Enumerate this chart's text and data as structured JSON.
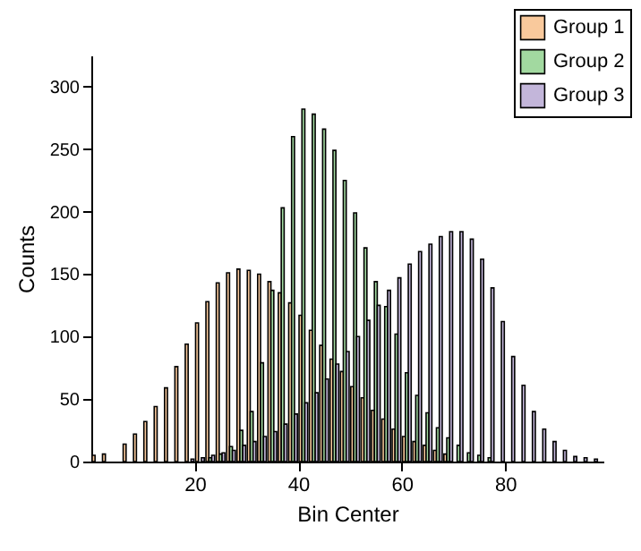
{
  "chart_data": {
    "type": "histogram",
    "xlabel": "Bin Center",
    "ylabel": "Counts",
    "bins": [
      0,
      2,
      4,
      6,
      8,
      10,
      12,
      14,
      16,
      18,
      20,
      22,
      24,
      26,
      28,
      30,
      32,
      34,
      36,
      38,
      40,
      42,
      44,
      46,
      48,
      50,
      52,
      54,
      56,
      58,
      60,
      62,
      64,
      66,
      68,
      70,
      72,
      74,
      76,
      78,
      80,
      82,
      84,
      86,
      88,
      90,
      92,
      94,
      96,
      98
    ],
    "series": [
      {
        "name": "Group 1",
        "color": "#f9c99c",
        "values": [
          5,
          6,
          null,
          14,
          22,
          32,
          44,
          59,
          76,
          94,
          111,
          128,
          143,
          151,
          154,
          153,
          150,
          144,
          135,
          127,
          117,
          105,
          93,
          82,
          72,
          60,
          51,
          41,
          34,
          26,
          20,
          16,
          13,
          9,
          6,
          null,
          null,
          null,
          null,
          null,
          null,
          null,
          null,
          null,
          null,
          null,
          null,
          null,
          null
        ]
      },
      {
        "name": "Group 2",
        "color": "#a2d9a0",
        "values": [
          null,
          null,
          null,
          null,
          null,
          null,
          null,
          null,
          null,
          null,
          null,
          3,
          6,
          12,
          25,
          40,
          79,
          137,
          203,
          260,
          282,
          278,
          266,
          249,
          225,
          199,
          171,
          144,
          124,
          102,
          71,
          53,
          39,
          27,
          19,
          13,
          7,
          5,
          3,
          null,
          null,
          null,
          null,
          null,
          null,
          null,
          null,
          null,
          null
        ]
      },
      {
        "name": "Group 3",
        "color": "#c3b6da",
        "values": [
          null,
          null,
          null,
          null,
          null,
          null,
          null,
          null,
          null,
          2,
          3,
          5,
          7,
          9,
          13,
          16,
          20,
          24,
          30,
          38,
          47,
          55,
          66,
          78,
          88,
          100,
          113,
          125,
          137,
          147,
          158,
          168,
          174,
          180,
          184,
          184,
          178,
          162,
          139,
          112,
          84,
          61,
          40,
          26,
          16,
          9,
          4,
          3,
          2
        ]
      }
    ],
    "xlim": [
      0,
      99
    ],
    "xticks": [
      20,
      40,
      60,
      80
    ],
    "ylim": [
      0,
      325
    ],
    "yticks": [
      0,
      50,
      100,
      150,
      200,
      250,
      300
    ],
    "legend": "top right"
  }
}
